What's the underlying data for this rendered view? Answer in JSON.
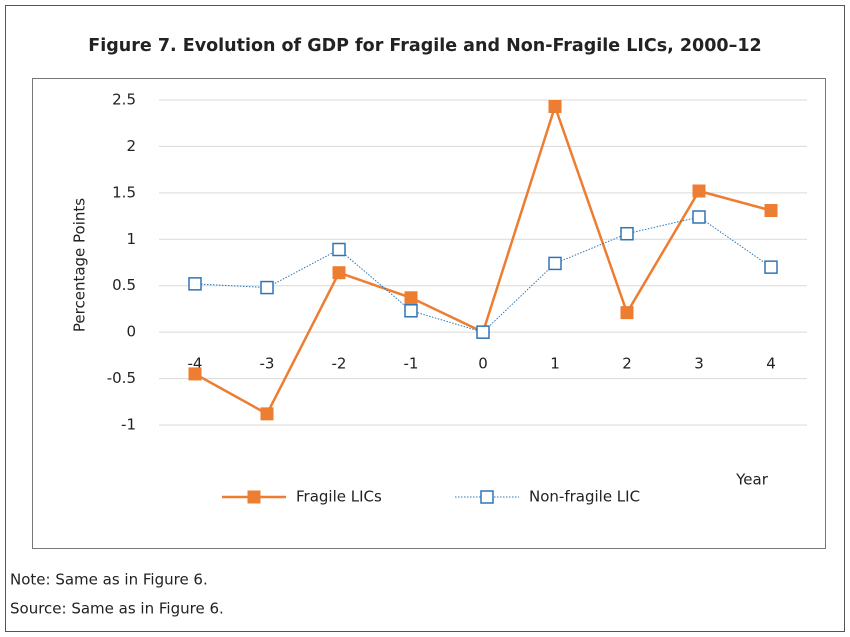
{
  "chart_data": {
    "type": "line",
    "title": "Figure 7. Evolution of GDP for Fragile and Non-Fragile LICs, 2000–12",
    "y_label": "Percentage Points",
    "x_label": "Year",
    "categories": [
      "-4",
      "-3",
      "-2",
      "-1",
      "0",
      "1",
      "2",
      "3",
      "4"
    ],
    "series": [
      {
        "name": "Fragile LICs",
        "color": "#ed7d31",
        "values": [
          -0.45,
          -0.88,
          0.64,
          0.37,
          0.0,
          2.43,
          0.21,
          1.52,
          1.31
        ]
      },
      {
        "name": "Non-fragile LIC",
        "color": "#2e75b6",
        "values": [
          0.52,
          0.48,
          0.89,
          0.23,
          0.0,
          0.74,
          1.06,
          1.24,
          0.7
        ]
      }
    ],
    "ylim": [
      -1,
      2.5
    ],
    "yticks": [
      -1,
      -0.5,
      0,
      0.5,
      1,
      1.5,
      2,
      2.5
    ],
    "grid": true,
    "legend": "bottom"
  },
  "notes": [
    "Note: Same as in Figure 6.",
    "Source: Same as in Figure 6."
  ]
}
